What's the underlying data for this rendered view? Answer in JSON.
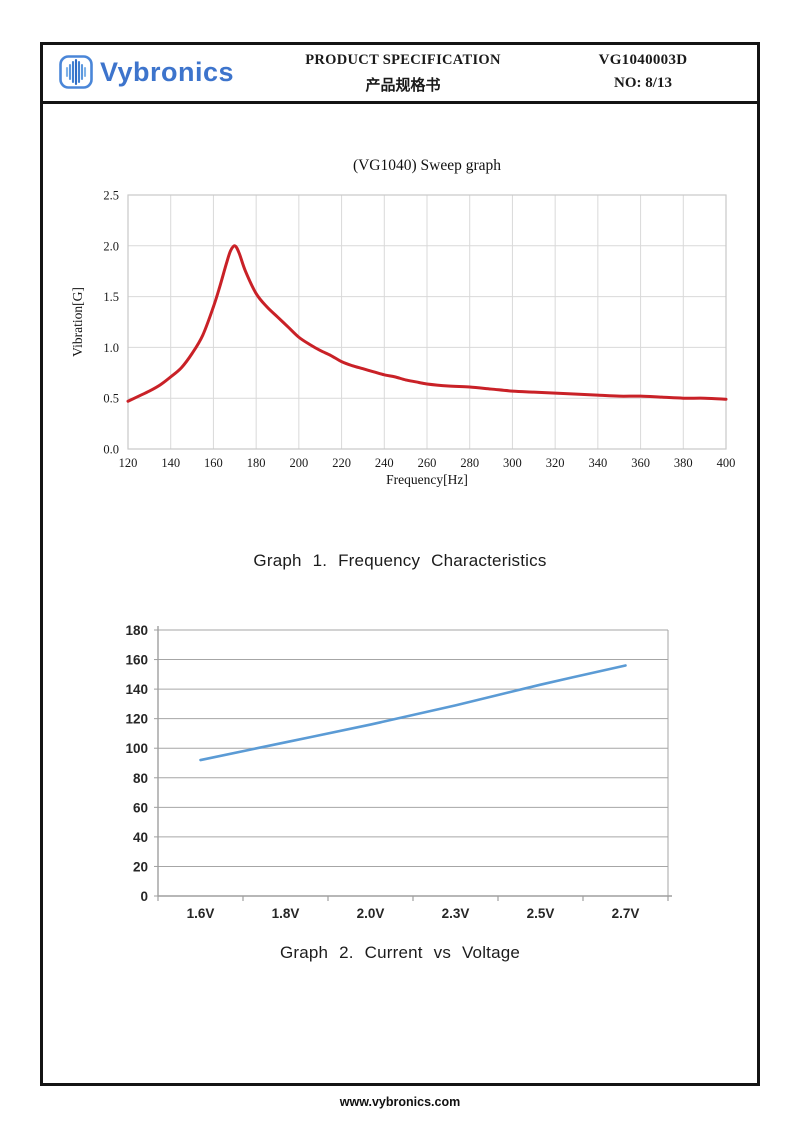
{
  "header": {
    "logo": {
      "brand": "Vybronics",
      "icon": "waveform-icon"
    },
    "title_en": "PRODUCT SPECIFICATION",
    "title_cn": "产品规格书",
    "doc_code": "VG1040003D",
    "page_no": "NO: 8/13"
  },
  "captions": {
    "graph1": "Graph 1. Frequency Characteristics",
    "graph2": "Graph 2. Current vs Voltage"
  },
  "footer": {
    "website": "www.vybronics.com"
  },
  "colors": {
    "sweep_line": "#c92127",
    "iv_line": "#5b9bd5",
    "grid_light": "#d9d9d9",
    "grid_medium": "#a6a6a6",
    "axis_gray": "#9f9f9f",
    "frame_black": "#141414",
    "logo_blue": "#3d74cc",
    "tick_text_dark": "#262626"
  },
  "chart_data": [
    {
      "id": "sweep",
      "type": "line",
      "title": "(VG1040) Sweep graph",
      "xlabel": "Frequency[Hz]",
      "ylabel": "Vibration[G]",
      "xlim": [
        120,
        400
      ],
      "ylim": [
        0,
        2.5
      ],
      "x_ticks": [
        120,
        140,
        160,
        180,
        200,
        220,
        240,
        260,
        280,
        300,
        320,
        340,
        360,
        380,
        400
      ],
      "y_tick_labels": [
        "0.0",
        "0.5",
        "1.0",
        "1.5",
        "2.0",
        "2.5"
      ],
      "grid": true,
      "legend": "none",
      "series": [
        {
          "name": "vibration",
          "color": "#c92127",
          "x": [
            120,
            125,
            130,
            135,
            140,
            145,
            150,
            155,
            160,
            163,
            166,
            168,
            170,
            172,
            175,
            180,
            185,
            190,
            195,
            200,
            205,
            210,
            215,
            220,
            225,
            230,
            235,
            240,
            245,
            250,
            255,
            260,
            270,
            280,
            290,
            300,
            310,
            320,
            330,
            340,
            350,
            360,
            370,
            380,
            390,
            400
          ],
          "y": [
            0.47,
            0.52,
            0.57,
            0.63,
            0.71,
            0.8,
            0.94,
            1.12,
            1.4,
            1.6,
            1.82,
            1.95,
            2.0,
            1.93,
            1.75,
            1.53,
            1.4,
            1.3,
            1.2,
            1.1,
            1.03,
            0.97,
            0.92,
            0.86,
            0.82,
            0.79,
            0.76,
            0.73,
            0.71,
            0.68,
            0.66,
            0.64,
            0.62,
            0.61,
            0.59,
            0.57,
            0.56,
            0.55,
            0.54,
            0.53,
            0.52,
            0.52,
            0.51,
            0.5,
            0.5,
            0.49
          ]
        }
      ],
      "peak": {
        "x": 170,
        "y": 2.0
      }
    },
    {
      "id": "current_vs_voltage",
      "type": "line",
      "title": "",
      "xlabel": "",
      "ylabel": "",
      "categories": [
        "1.6V",
        "1.8V",
        "2.0V",
        "2.3V",
        "2.5V",
        "2.7V"
      ],
      "values": [
        92,
        104,
        116,
        129,
        143,
        156
      ],
      "ylim": [
        0,
        180
      ],
      "y_ticks": [
        0,
        20,
        40,
        60,
        80,
        100,
        120,
        140,
        160,
        180
      ],
      "grid": true,
      "legend": "none",
      "color": "#5b9bd5"
    }
  ]
}
